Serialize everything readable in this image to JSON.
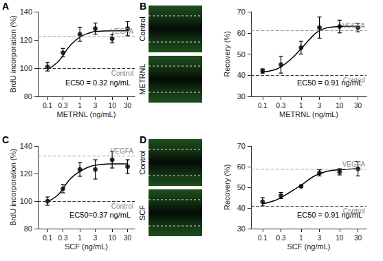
{
  "chart_data": [
    {
      "panel": "A",
      "type": "line",
      "x_label": "METRNL (ng/mL)",
      "y_label": "BrdU incorporation (%)",
      "log": "x",
      "xlim": [
        0.05,
        50
      ],
      "xticks": [
        0.1,
        0.3,
        1,
        3,
        10,
        30
      ],
      "ylim": [
        80,
        140
      ],
      "yticks": [
        80,
        100,
        120,
        140
      ],
      "color": "#000000",
      "marker": "circle",
      "x": [
        0.1,
        0.3,
        1,
        3,
        10,
        30
      ],
      "values": [
        101,
        111,
        124,
        128,
        121,
        128
      ],
      "errors": [
        3,
        3,
        5,
        4,
        3,
        5
      ],
      "fit": {
        "x": [
          0.1,
          0.2,
          0.3,
          0.5,
          1,
          2,
          3,
          10,
          30
        ],
        "values": [
          99,
          104,
          109,
          116,
          122,
          125,
          126,
          126.5,
          126.5
        ]
      },
      "reference_lines": [
        {
          "label": "VEGFA",
          "value": 122.5,
          "color": "#999999"
        },
        {
          "label": "Control",
          "value": 100,
          "color": "#333333"
        }
      ],
      "annotations": [
        "EC50 = 0.32 ng/mL"
      ]
    },
    {
      "panel": "B",
      "type": "line",
      "x_label": "METRNL (ng/mL)",
      "y_label": "Recovery (%)",
      "log": "x",
      "xlim": [
        0.05,
        50
      ],
      "xticks": [
        0.1,
        0.3,
        1,
        3,
        10,
        30
      ],
      "ylim": [
        30,
        70
      ],
      "yticks": [
        30,
        40,
        50,
        60,
        70
      ],
      "color": "#000000",
      "marker": "circle",
      "x": [
        0.1,
        0.3,
        1,
        3,
        10,
        30
      ],
      "values": [
        42,
        45,
        53,
        62.5,
        63,
        62.5
      ],
      "errors": [
        1,
        4,
        3,
        5,
        3,
        2
      ],
      "fit": {
        "x": [
          0.1,
          0.2,
          0.3,
          0.5,
          1,
          2,
          3,
          5,
          10,
          30
        ],
        "values": [
          41.5,
          42.5,
          44,
          47,
          52.5,
          58.5,
          61,
          62.5,
          63,
          63.2
        ]
      },
      "reference_lines": [
        {
          "label": "VEGFA",
          "value": 61,
          "color": "#999999"
        },
        {
          "label": "Control",
          "value": 40,
          "color": "#333333"
        }
      ],
      "annotations": [
        "EC50 = 0.91 ng/mL"
      ],
      "images": [
        "Control",
        "METRNL"
      ]
    },
    {
      "panel": "C",
      "type": "line",
      "x_label": "SCF (ng/mL)",
      "y_label": "BrdU incorporation (%)",
      "log": "x",
      "xlim": [
        0.05,
        50
      ],
      "xticks": [
        0.1,
        0.3,
        1,
        3,
        10,
        30
      ],
      "ylim": [
        80,
        140
      ],
      "yticks": [
        80,
        100,
        120,
        140
      ],
      "color": "#000000",
      "marker": "circle",
      "x": [
        0.1,
        0.3,
        1,
        3,
        10,
        30
      ],
      "values": [
        100,
        109,
        123,
        123,
        130,
        125
      ],
      "errors": [
        3,
        3,
        5,
        7,
        6,
        5
      ],
      "fit": {
        "x": [
          0.1,
          0.2,
          0.3,
          0.5,
          1,
          2,
          3,
          10,
          30
        ],
        "values": [
          99.5,
          104,
          109,
          116,
          121.5,
          125,
          126,
          127,
          127
        ]
      },
      "reference_lines": [
        {
          "label": "VEGFA",
          "value": 133,
          "color": "#999999"
        },
        {
          "label": "Control",
          "value": 100,
          "color": "#333333"
        }
      ],
      "annotations": [
        "EC50=0.37 ng/mL"
      ]
    },
    {
      "panel": "D",
      "type": "line",
      "x_label": "SCF (ng/mL)",
      "y_label": "Recovery (%)",
      "log": "x",
      "xlim": [
        0.05,
        50
      ],
      "xticks": [
        0.1,
        0.3,
        1,
        3,
        10,
        30
      ],
      "ylim": [
        30,
        70
      ],
      "yticks": [
        30,
        40,
        50,
        60,
        70
      ],
      "color": "#000000",
      "marker": "circle",
      "x": [
        0.1,
        0.3,
        1,
        3,
        10,
        30
      ],
      "values": [
        43,
        46,
        50.5,
        57,
        57.5,
        59
      ],
      "errors": [
        2,
        1.5,
        0.5,
        1.5,
        1.5,
        3.5
      ],
      "fit": {
        "x": [
          0.1,
          0.2,
          0.3,
          0.5,
          1,
          2,
          3,
          5,
          10,
          30
        ],
        "values": [
          42,
          43.5,
          45,
          47.5,
          51,
          55,
          56.5,
          57.8,
          58.5,
          59
        ]
      },
      "reference_lines": [
        {
          "label": "VEGFA",
          "value": 59,
          "color": "#999999"
        },
        {
          "label": "Control",
          "value": 41,
          "color": "#333333"
        }
      ],
      "annotations": [
        "EC50 = 0.91 ng/mL"
      ],
      "images": [
        "Control",
        "SCF"
      ]
    }
  ]
}
